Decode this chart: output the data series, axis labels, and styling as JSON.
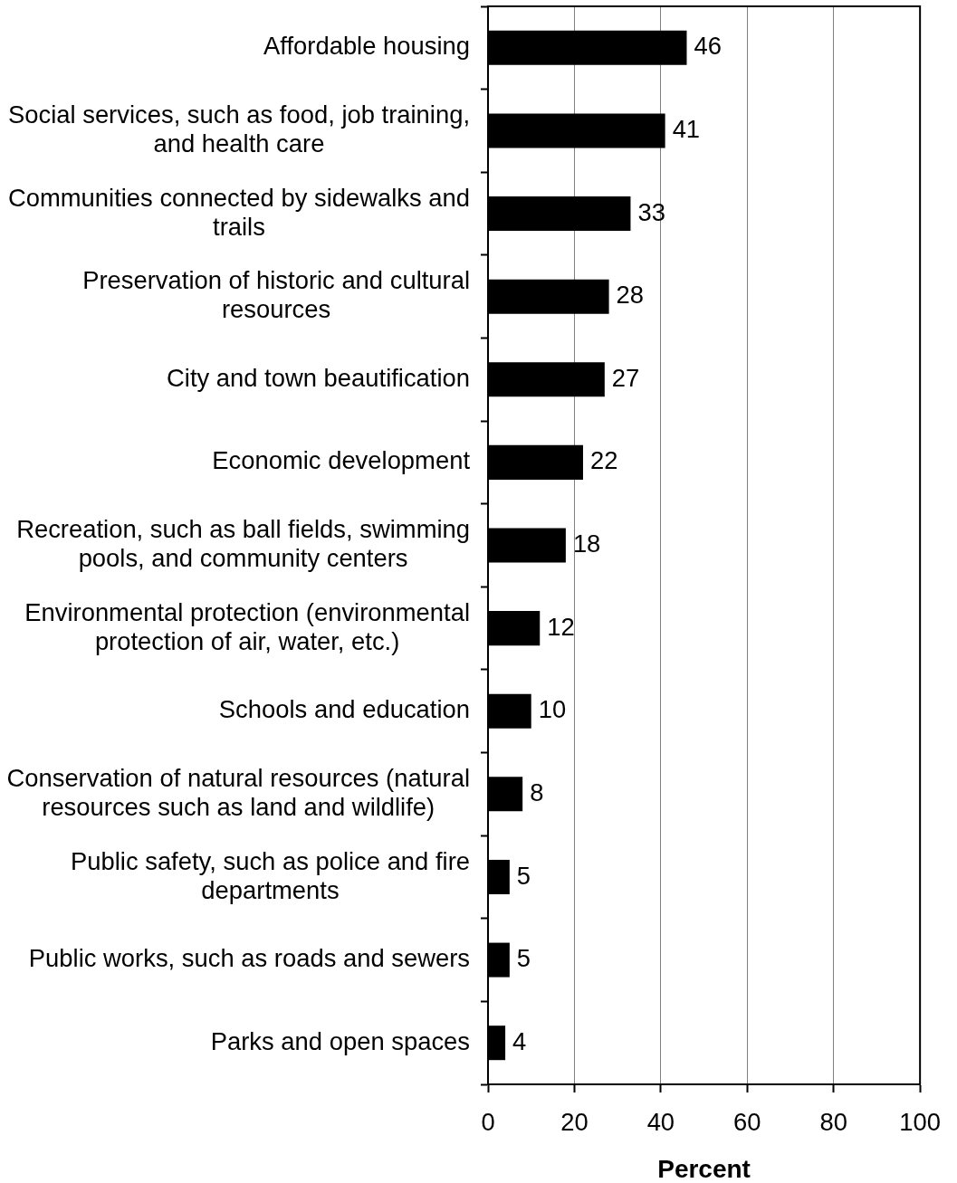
{
  "chart_data": {
    "type": "bar",
    "orientation": "horizontal",
    "xlabel": "Percent",
    "categories": [
      "Affordable housing",
      "Social services, such as food, job training, and health care",
      "Communities connected by sidewalks and trails",
      "Preservation of historic and cultural resources",
      "City and town beautification",
      "Economic development",
      "Recreation, such as ball fields, swimming pools, and community centers",
      "Environmental protection (environmental protection of air, water, etc.)",
      "Schools and education",
      "Conservation of natural resources (natural resources such as land and wildlife)",
      "Public safety, such as police and fire departments",
      "Public works, such as roads and sewers",
      "Parks and open spaces"
    ],
    "values": [
      46,
      41,
      33,
      28,
      27,
      22,
      18,
      12,
      10,
      8,
      5,
      5,
      4
    ],
    "color": "#000000",
    "xlim": [
      0,
      100
    ],
    "xticks": [
      0,
      20,
      40,
      60,
      80,
      100
    ],
    "grid": "x",
    "data_labels": true
  }
}
